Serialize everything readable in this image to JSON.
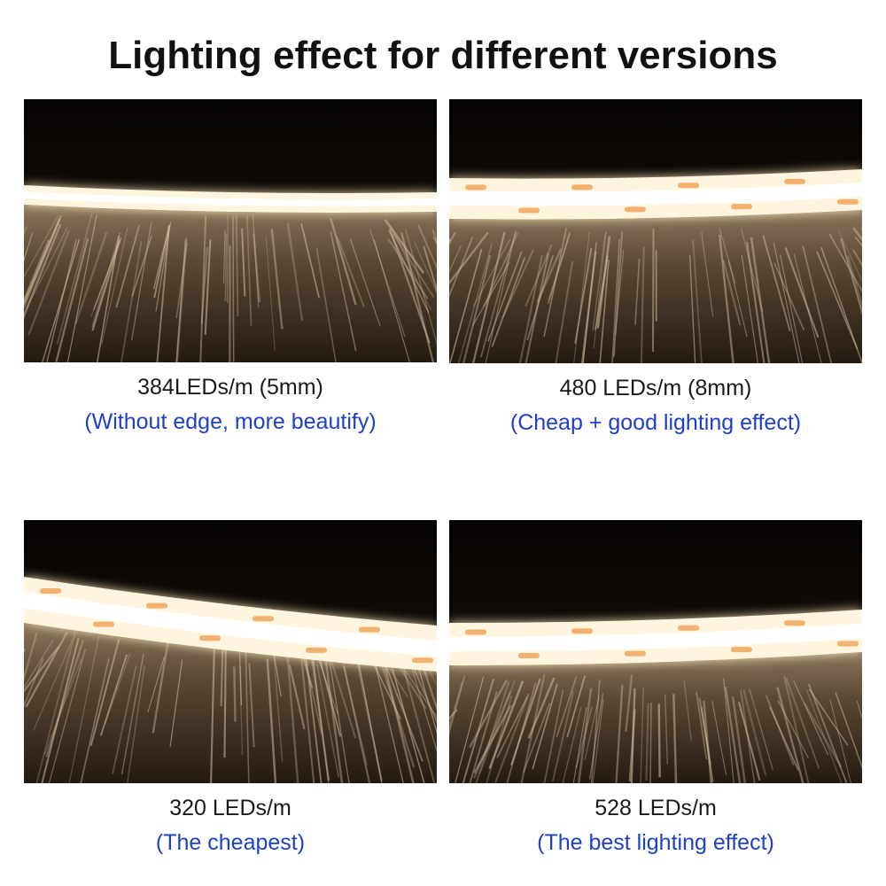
{
  "title": "Lighting effect for different versions",
  "panels": [
    {
      "label": "384LEDs/m (5mm)",
      "note": "(Without edge, more beautify)"
    },
    {
      "label": "480 LEDs/m (8mm)",
      "note": "(Cheap + good lighting effect)"
    },
    {
      "label": "320 LEDs/m",
      "note": "(The cheapest)"
    },
    {
      "label": "528 LEDs/m",
      "note": "(The best lighting effect)"
    }
  ]
}
